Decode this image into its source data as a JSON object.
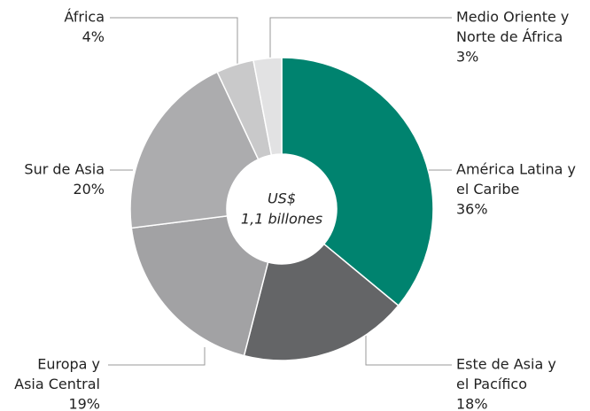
{
  "chart_data": {
    "type": "pie",
    "labels": [
      [
        "América Latina y",
        "el Caribe"
      ],
      [
        "Este de Asia y",
        "el Pacífico"
      ],
      [
        "Europa y",
        "Asia Central"
      ],
      [
        "Sur de Asia"
      ],
      [
        "África"
      ],
      [
        "Medio Oriente y",
        "Norte de África"
      ]
    ],
    "values": [
      36,
      18,
      19,
      20,
      4,
      3
    ],
    "value_labels": [
      "36%",
      "18%",
      "19%",
      "20%",
      "4%",
      "3%"
    ],
    "colors": [
      "#00836f",
      "#646567",
      "#a2a2a4",
      "#acacae",
      "#c9c9ca",
      "#e2e2e3"
    ],
    "center_label": [
      "US$",
      "1,1 billones"
    ]
  }
}
